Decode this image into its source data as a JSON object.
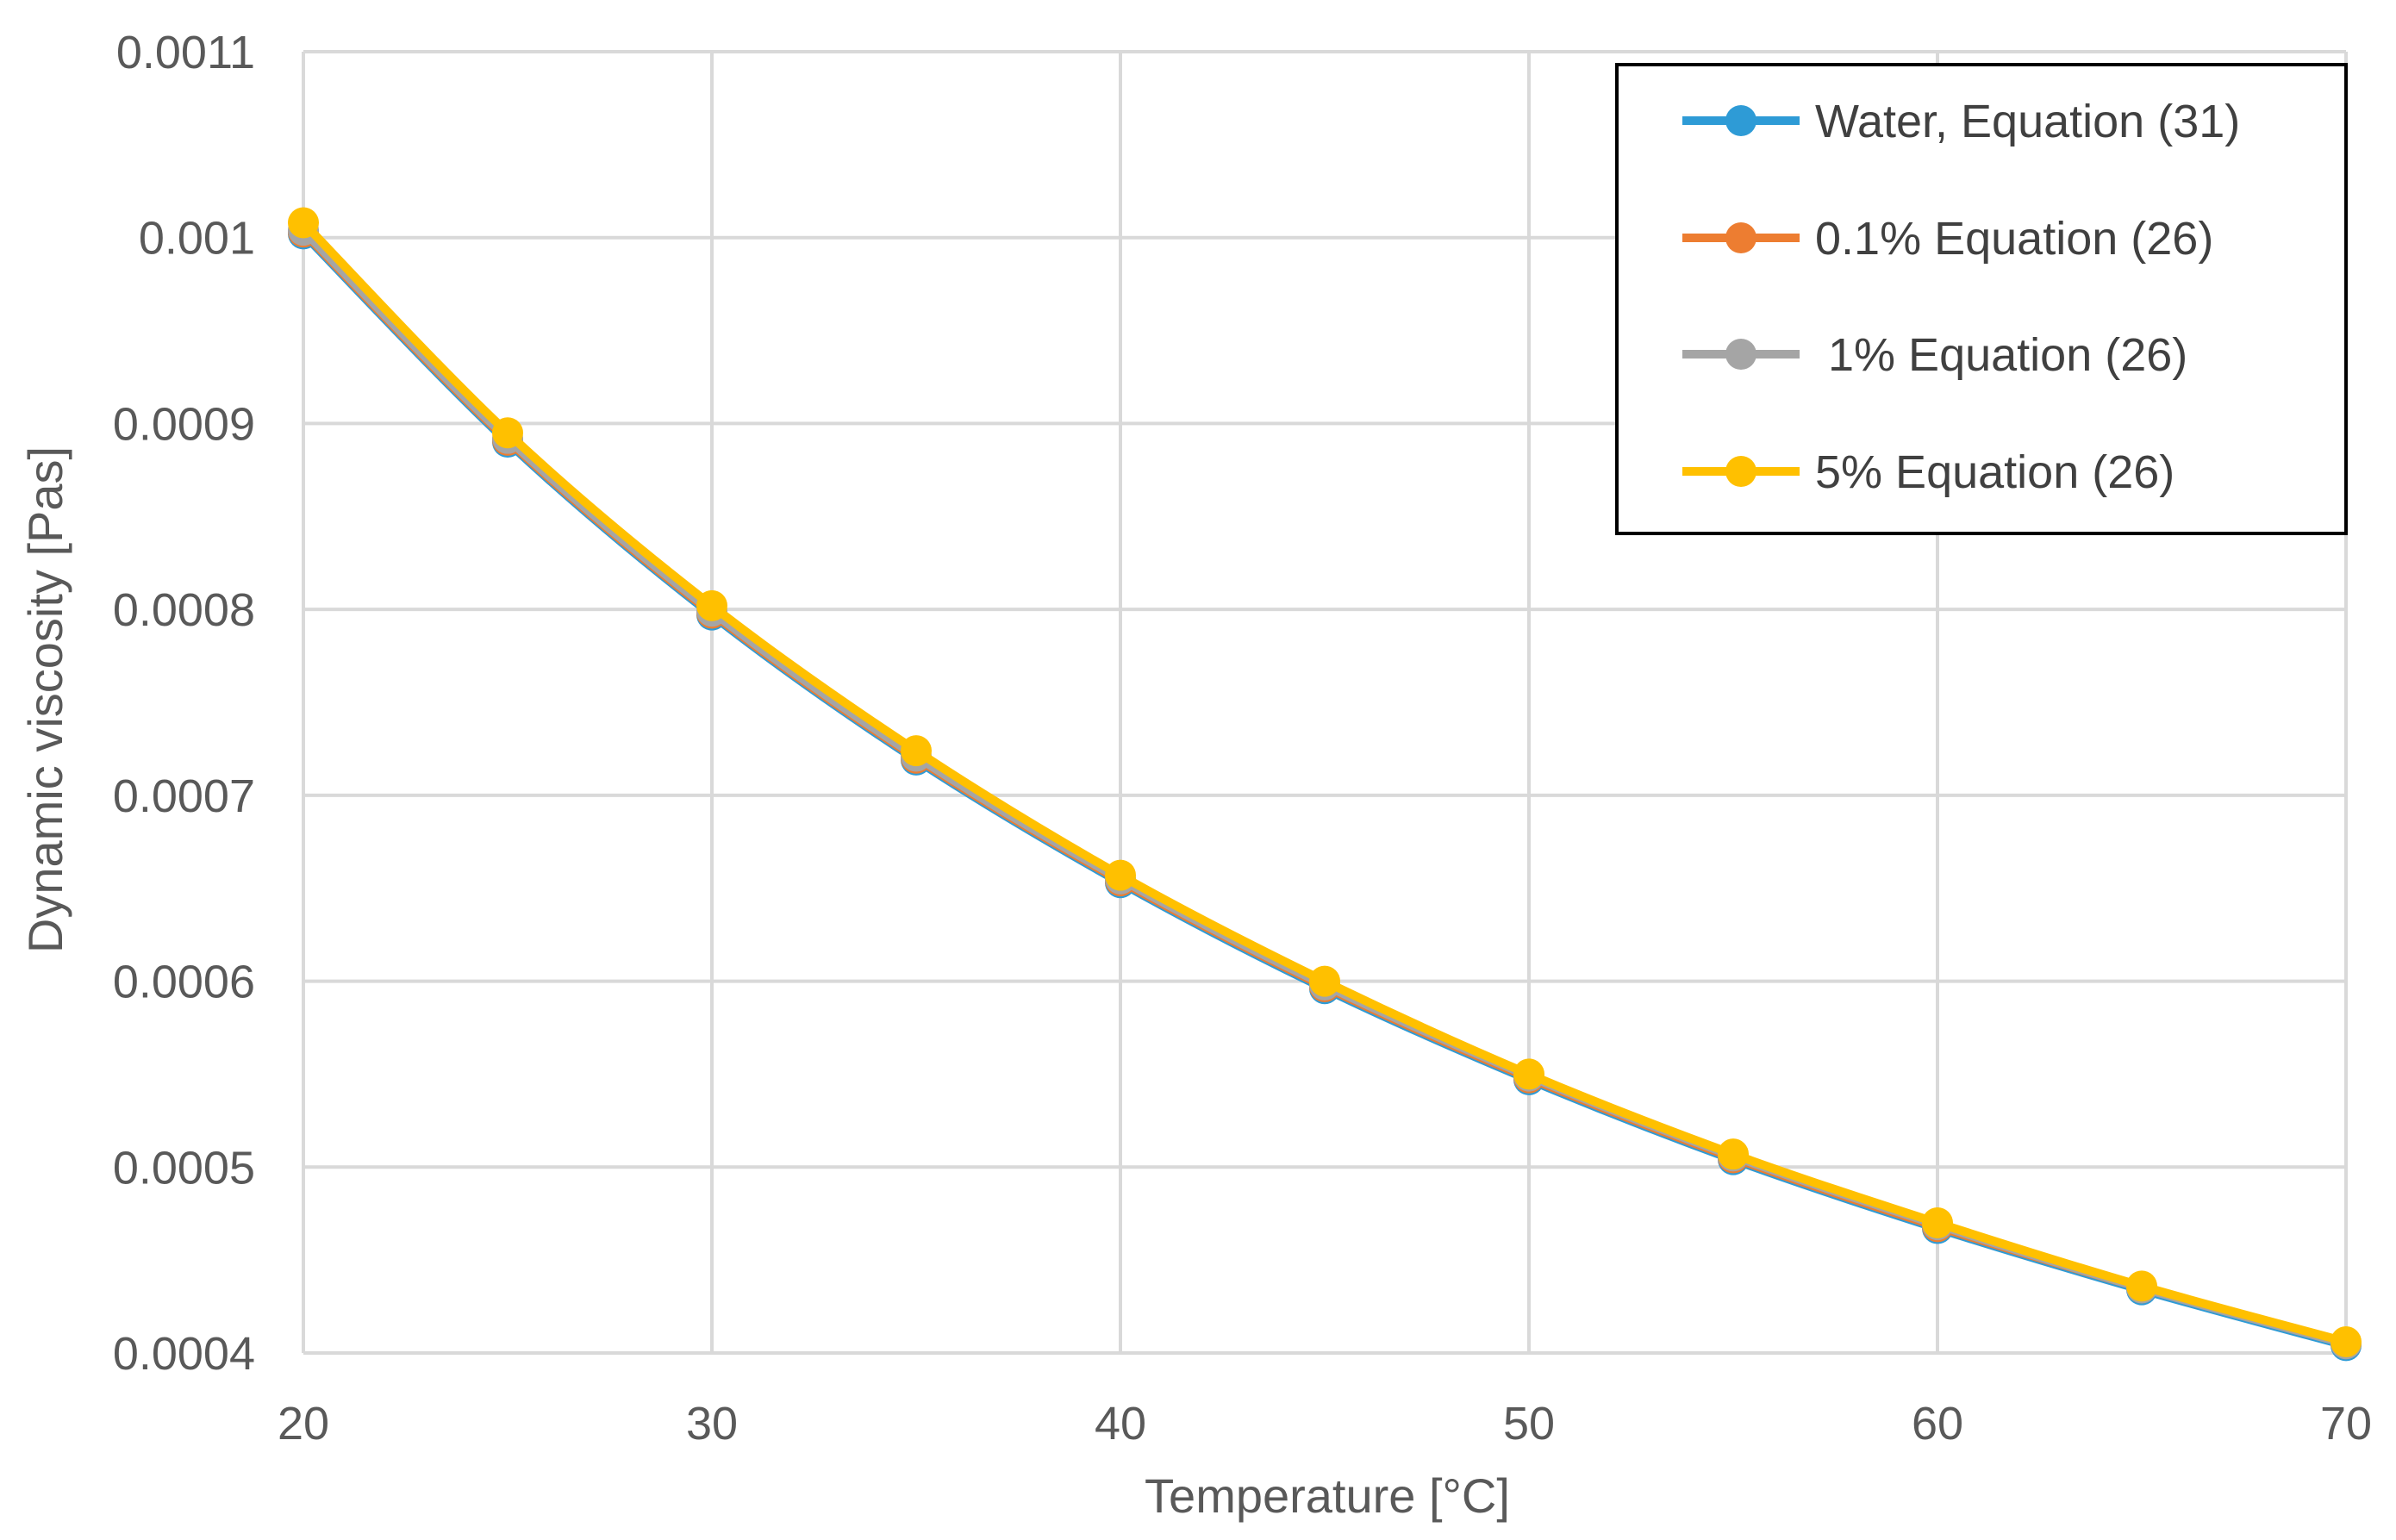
{
  "chart_data": {
    "type": "line",
    "title": "",
    "xlabel": "Temperature [°C]",
    "ylabel": "Dynamic viscosity [Pas]",
    "xlim": [
      20,
      70
    ],
    "ylim": [
      0.0004,
      0.0011
    ],
    "x_ticks": [
      20,
      30,
      40,
      50,
      60,
      70
    ],
    "x_tick_labels": [
      "20",
      "30",
      "40",
      "50",
      "60",
      "70"
    ],
    "y_ticks": [
      0.0004,
      0.0005,
      0.0006,
      0.0007,
      0.0008,
      0.0009,
      0.001,
      0.0011
    ],
    "y_tick_labels": [
      "0.0004",
      "0.0005",
      "0.0006",
      "0.0007",
      "0.0008",
      "0.0009",
      "0.001",
      "0.0011"
    ],
    "grid": true,
    "legend_position": "top-right",
    "x": [
      20,
      25,
      30,
      35,
      40,
      45,
      50,
      55,
      60,
      65,
      70
    ],
    "series": [
      {
        "name": "Water, Equation (31)",
        "color": "#2e9bd6",
        "values": [
          0.001002,
          0.00089,
          0.000797,
          0.000719,
          0.000653,
          0.000596,
          0.000547,
          0.000504,
          0.000467,
          0.000434,
          0.000404
        ]
      },
      {
        "name": "0.1% Equation (26)",
        "color": "#ed7d31",
        "values": [
          0.001003,
          0.000891,
          0.000798,
          0.00072,
          0.000654,
          0.000597,
          0.000548,
          0.000505,
          0.000468,
          0.000435,
          0.000405
        ]
      },
      {
        "name": " 1% Equation (26)",
        "color": "#a5a5a5",
        "values": [
          0.001004,
          0.000892,
          0.000799,
          0.000721,
          0.000655,
          0.000598,
          0.000549,
          0.000506,
          0.000469,
          0.000435,
          0.000405
        ]
      },
      {
        "name": "5% Equation (26)",
        "color": "#ffc000",
        "values": [
          0.001008,
          0.000895,
          0.000802,
          0.000724,
          0.000657,
          0.0006,
          0.00055,
          0.000507,
          0.00047,
          0.000436,
          0.000406
        ]
      }
    ]
  }
}
